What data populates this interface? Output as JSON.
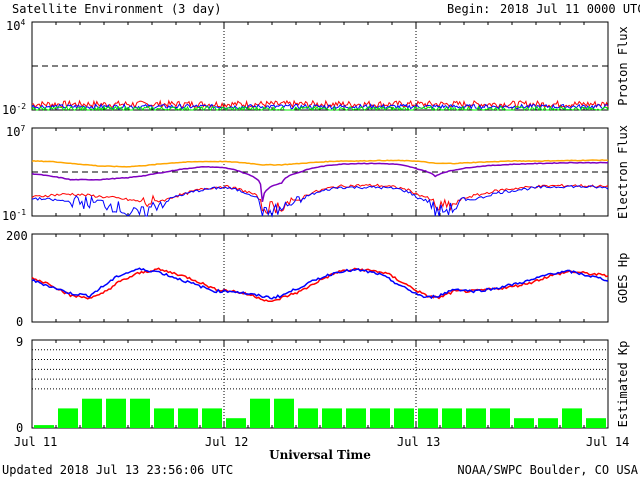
{
  "header": {
    "title": "Satellite Environment (3 day)",
    "begin_label": "Begin:",
    "begin_value": "2018 Jul 11 0000 UTC"
  },
  "footer": {
    "updated": "Updated 2018 Jul 13 23:56:06 UTC",
    "source": "NOAA/SWPC Boulder, CO USA",
    "xlabel": "Universal Time"
  },
  "x_ticks": [
    "Jul 11",
    "Jul 12",
    "Jul 13",
    "Jul 14"
  ],
  "colors": {
    "red": "#ff0000",
    "blue": "#0000ff",
    "green": "#00ee00",
    "orange": "#ffa500",
    "purple": "#7f00c0",
    "kp_bar": "#00ff00"
  },
  "chart_data": [
    {
      "type": "line",
      "ylabel": "Proton Flux",
      "yscale": "log",
      "ylim": [
        0.01,
        10000
      ],
      "y_tick_labels": [
        "10^-2",
        "10^4"
      ],
      "threshold": 10,
      "series": [
        {
          "color": "red",
          "level": 0.025,
          "noise": 0.45
        },
        {
          "color": "blue",
          "level": 0.017,
          "noise": 0.3
        },
        {
          "color": "green",
          "level": 0.012,
          "noise": 0.3
        }
      ]
    },
    {
      "type": "line",
      "ylabel": "Electron Flux",
      "yscale": "log",
      "ylim": [
        0.1,
        10000000
      ],
      "y_tick_labels": [
        "10^-1",
        "10^7"
      ],
      "threshold": 1000,
      "x_days": [
        0,
        0.1,
        0.2,
        0.35,
        0.5,
        0.6,
        0.7,
        0.8,
        0.9,
        1.0,
        1.1,
        1.2,
        1.3,
        1.4,
        1.5,
        1.6,
        1.7,
        1.8,
        1.9,
        2.0,
        2.1,
        2.2,
        2.35,
        2.5,
        2.65,
        2.8,
        2.95,
        3.0
      ],
      "series": [
        {
          "color": "orange",
          "values": [
            10000,
            9000,
            6000,
            3500,
            3000,
            4000,
            6000,
            8000,
            9000,
            9000,
            7000,
            4500,
            4500,
            6000,
            8000,
            10000,
            10000,
            11000,
            11000,
            10000,
            6000,
            6000,
            8000,
            10000,
            10000,
            11000,
            12000,
            12000
          ]
        },
        {
          "color": "purple",
          "values": [
            700,
            400,
            200,
            200,
            300,
            500,
            1000,
            2000,
            3000,
            2500,
            800,
            2,
            100,
            1000,
            3000,
            5000,
            6000,
            6000,
            5000,
            2000,
            400,
            1500,
            3500,
            5000,
            6000,
            7000,
            7000,
            7000
          ]
        },
        {
          "color": "red",
          "values": [
            5,
            8,
            10,
            6,
            3,
            1.5,
            3,
            10,
            30,
            50,
            20,
            0.5,
            0.8,
            3,
            20,
            50,
            60,
            60,
            40,
            10,
            0.5,
            1,
            10,
            30,
            50,
            60,
            50,
            45
          ]
        },
        {
          "color": "blue",
          "values": [
            4,
            3,
            2,
            1.5,
            0.15,
            0.2,
            2,
            10,
            25,
            40,
            15,
            0.15,
            0.4,
            2,
            15,
            40,
            40,
            40,
            30,
            5,
            0.2,
            0.5,
            5,
            20,
            40,
            50,
            40,
            35
          ]
        }
      ]
    },
    {
      "type": "line",
      "ylabel": "GOES Hp",
      "ylim": [
        0,
        200
      ],
      "y_tick_labels": [
        "0",
        "200"
      ],
      "x_days": [
        0,
        0.1,
        0.2,
        0.3,
        0.35,
        0.45,
        0.55,
        0.65,
        0.75,
        0.85,
        0.95,
        1.05,
        1.15,
        1.25,
        1.3,
        1.4,
        1.5,
        1.6,
        1.7,
        1.8,
        1.85,
        1.95,
        2.05,
        2.12,
        2.2,
        2.3,
        2.4,
        2.5,
        2.6,
        2.7,
        2.8,
        2.9,
        3.0
      ],
      "series": [
        {
          "color": "red",
          "values": [
            100,
            85,
            60,
            55,
            60,
            90,
            110,
            120,
            110,
            95,
            75,
            70,
            60,
            45,
            55,
            70,
            95,
            115,
            120,
            115,
            110,
            85,
            60,
            55,
            70,
            70,
            75,
            80,
            90,
            105,
            115,
            110,
            105
          ]
        },
        {
          "color": "blue",
          "values": [
            95,
            80,
            65,
            60,
            75,
            105,
            120,
            115,
            100,
            85,
            70,
            70,
            62,
            55,
            60,
            80,
            100,
            115,
            118,
            110,
            100,
            75,
            55,
            60,
            75,
            70,
            75,
            85,
            95,
            110,
            115,
            105,
            95
          ]
        }
      ]
    },
    {
      "type": "bar",
      "ylabel": "Estimated Kp",
      "ylim": [
        0,
        9
      ],
      "y_tick_labels": [
        "0",
        "9"
      ],
      "grid_levels": [
        4,
        5,
        6,
        7,
        8
      ],
      "bin_hours": 3,
      "values": [
        0.3,
        2,
        3,
        3,
        3,
        2,
        2,
        2,
        1,
        3,
        3,
        2,
        2,
        2,
        2,
        2,
        2,
        2,
        2,
        2,
        1,
        1,
        2,
        1
      ]
    }
  ]
}
